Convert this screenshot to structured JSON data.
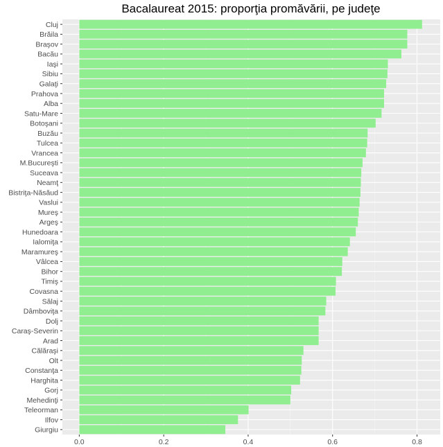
{
  "chart_data": {
    "type": "bar",
    "orientation": "horizontal",
    "title": "Bacalaureat 2015: proporţia promăvării, pe judeţe",
    "xlabel": "",
    "ylabel": "",
    "xlim": [
      -0.04,
      0.855
    ],
    "xticks": [
      0.0,
      0.2,
      0.4,
      0.6,
      0.8
    ],
    "xtick_labels": [
      "0.0",
      "0.2",
      "0.4",
      "0.6",
      "0.8"
    ],
    "grid": true,
    "categories": [
      "Cluj",
      "Brăila",
      "Braşov",
      "Bacău",
      "Iaşi",
      "Sibiu",
      "Galaţi",
      "Prahova",
      "Alba",
      "Satu-Mare",
      "Botoşani",
      "Buzău",
      "Tulcea",
      "Vrancea",
      "M.Bucureşti",
      "Suceava",
      "Neamţ",
      "Bistriţa-Năsăud",
      "Vaslui",
      "Mureş",
      "Argeş",
      "Hunedoara",
      "Ialomiţa",
      "Maramureş",
      "Vâlcea",
      "Bihor",
      "Timiş",
      "Covasna",
      "Sălaj",
      "Dâmboviţa",
      "Dolj",
      "Caraş-Severin",
      "Arad",
      "Călăraşi",
      "Olt",
      "Constanţa",
      "Harghita",
      "Gorj",
      "Mehedinţi",
      "Teleorman",
      "Ilfov",
      "Giurgiu"
    ],
    "values": [
      0.812,
      0.777,
      0.777,
      0.763,
      0.731,
      0.73,
      0.727,
      0.722,
      0.722,
      0.716,
      0.702,
      0.683,
      0.682,
      0.679,
      0.671,
      0.668,
      0.667,
      0.666,
      0.664,
      0.662,
      0.66,
      0.655,
      0.641,
      0.636,
      0.623,
      0.622,
      0.608,
      0.607,
      0.585,
      0.583,
      0.567,
      0.567,
      0.567,
      0.531,
      0.527,
      0.526,
      0.523,
      0.502,
      0.5,
      0.401,
      0.376,
      0.346
    ],
    "colors": {
      "bar": "#90ee90",
      "panel": "#ebebeb",
      "grid_major": "#ffffff",
      "grid_minor": "#f5f5f5",
      "text": "#4d4d4d"
    }
  }
}
